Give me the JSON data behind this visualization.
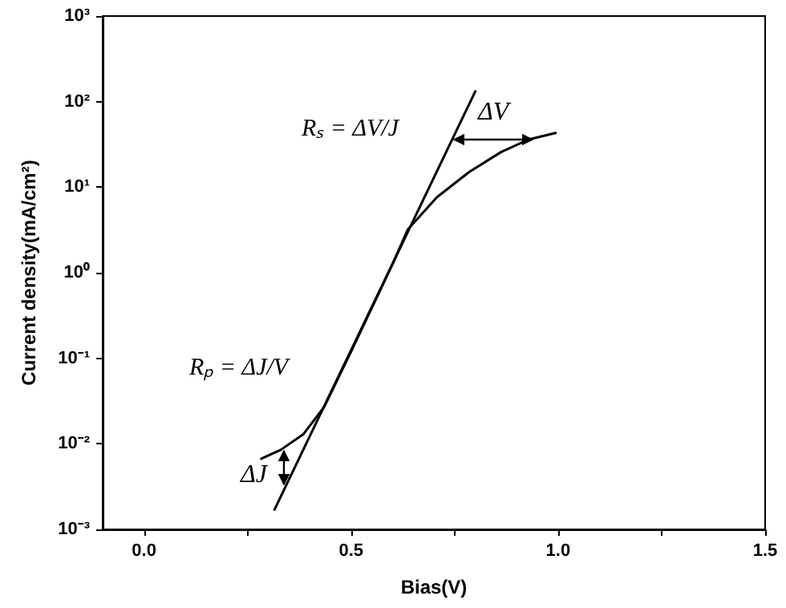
{
  "chart_data": {
    "type": "line",
    "xlabel": "Bias(V)",
    "ylabel": "Current density(mA/cm²)",
    "log": "y",
    "xlim": [
      -0.1,
      1.5
    ],
    "ylim": [
      0.001,
      1000
    ],
    "xticks": [
      {
        "value": 0,
        "label": "0.0"
      },
      {
        "value": 0.25,
        "label": null
      },
      {
        "value": 0.5,
        "label": "0.5"
      },
      {
        "value": 0.75,
        "label": null
      },
      {
        "value": 1,
        "label": "1.0"
      },
      {
        "value": 1.25,
        "label": null
      },
      {
        "value": 1.5,
        "label": "1.5"
      }
    ],
    "yticks": [
      {
        "value": 0.001,
        "label": "10⁻³"
      },
      {
        "value": 0.01,
        "label": "10⁻²"
      },
      {
        "value": 0.1,
        "label": "10⁻¹"
      },
      {
        "value": 1,
        "label": "10⁰"
      },
      {
        "value": 10,
        "label": "10¹"
      },
      {
        "value": 100,
        "label": "10²"
      },
      {
        "value": 1000,
        "label": "10³"
      }
    ],
    "grid": false,
    "marker": "none",
    "line_style": "solid",
    "series": [
      {
        "color": "#000000",
        "x": [
          0.283,
          0.33,
          0.385,
          0.435,
          0.5,
          0.6,
          0.637,
          0.707,
          0.785,
          0.862,
          0.928,
          0.994
        ],
        "values": [
          0.0067,
          0.0085,
          0.013,
          0.027,
          0.12,
          1.26,
          3.2,
          7.6,
          15,
          25.7,
          36,
          43
        ]
      },
      {
        "color": "#000000",
        "x": [
          0.315,
          0.8
        ],
        "values": [
          0.0017,
          132
        ]
      }
    ],
    "annotations": [
      "Rₛ = ΔV/J",
      "Rₚ = ΔJ/V",
      "ΔV",
      "ΔJ"
    ]
  }
}
